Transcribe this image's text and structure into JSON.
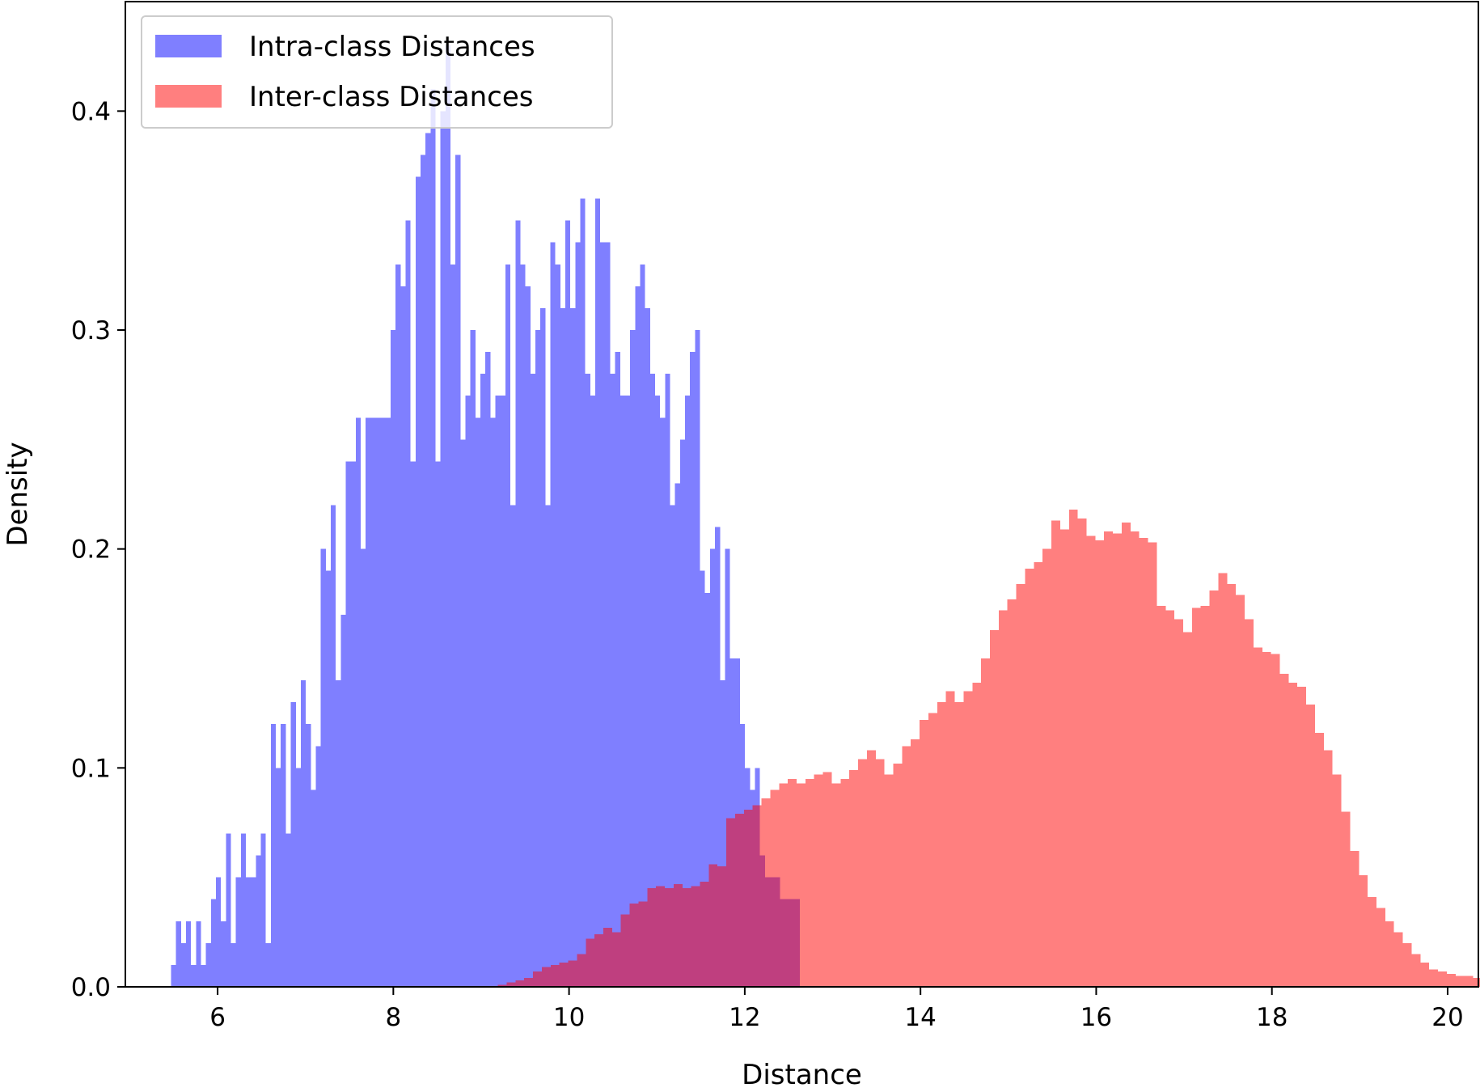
{
  "chart_data": {
    "type": "histogram",
    "title": "",
    "xlabel": "Distance",
    "ylabel": "Density",
    "xlim": [
      4.95,
      20.35
    ],
    "ylim": [
      0,
      0.45
    ],
    "xticks": [
      6,
      8,
      10,
      12,
      14,
      16,
      18,
      20
    ],
    "yticks": [
      0.0,
      0.1,
      0.2,
      0.3,
      0.4
    ],
    "ytick_labels": [
      "0.0",
      "0.1",
      "0.2",
      "0.3",
      "0.4"
    ],
    "grid": false,
    "legend_position": "top-left",
    "series": [
      {
        "name": "Intra-class Distances",
        "color": "#0000ff",
        "alpha": 0.5,
        "bin_start": 5.47,
        "bin_width": 0.0568,
        "values": [
          0.01,
          0.03,
          0.02,
          0.03,
          0.01,
          0.03,
          0.01,
          0.02,
          0.04,
          0.05,
          0.03,
          0.07,
          0.02,
          0.05,
          0.07,
          0.05,
          0.05,
          0.06,
          0.07,
          0.02,
          0.12,
          0.1,
          0.12,
          0.07,
          0.13,
          0.1,
          0.14,
          0.12,
          0.09,
          0.11,
          0.2,
          0.19,
          0.22,
          0.14,
          0.17,
          0.24,
          0.24,
          0.26,
          0.2,
          0.26,
          0.26,
          0.26,
          0.26,
          0.26,
          0.3,
          0.33,
          0.32,
          0.35,
          0.24,
          0.37,
          0.38,
          0.39,
          0.41,
          0.24,
          0.4,
          0.43,
          0.33,
          0.38,
          0.25,
          0.27,
          0.3,
          0.26,
          0.28,
          0.29,
          0.26,
          0.27,
          0.27,
          0.33,
          0.22,
          0.35,
          0.33,
          0.32,
          0.28,
          0.3,
          0.31,
          0.22,
          0.34,
          0.33,
          0.31,
          0.35,
          0.31,
          0.34,
          0.36,
          0.28,
          0.27,
          0.36,
          0.34,
          0.34,
          0.28,
          0.29,
          0.27,
          0.27,
          0.3,
          0.32,
          0.33,
          0.31,
          0.28,
          0.27,
          0.26,
          0.28,
          0.22,
          0.23,
          0.25,
          0.27,
          0.29,
          0.3,
          0.19,
          0.18,
          0.2,
          0.21,
          0.14,
          0.2,
          0.15,
          0.15,
          0.12,
          0.1,
          0.09,
          0.1,
          0.06,
          0.05,
          0.05,
          0.05,
          0.04,
          0.04,
          0.04,
          0.04
        ]
      },
      {
        "name": "Inter-class Distances",
        "color": "#ff0000",
        "alpha": 0.5,
        "bin_start": 9.19,
        "bin_width": 0.1,
        "values": [
          0.001,
          0.002,
          0.003,
          0.004,
          0.007,
          0.009,
          0.01,
          0.011,
          0.012,
          0.015,
          0.022,
          0.024,
          0.027,
          0.025,
          0.033,
          0.038,
          0.039,
          0.045,
          0.046,
          0.045,
          0.047,
          0.045,
          0.046,
          0.048,
          0.056,
          0.055,
          0.077,
          0.079,
          0.081,
          0.083,
          0.086,
          0.09,
          0.093,
          0.095,
          0.093,
          0.095,
          0.097,
          0.098,
          0.093,
          0.095,
          0.099,
          0.104,
          0.108,
          0.104,
          0.097,
          0.102,
          0.11,
          0.113,
          0.122,
          0.125,
          0.13,
          0.135,
          0.13,
          0.135,
          0.139,
          0.15,
          0.163,
          0.172,
          0.177,
          0.184,
          0.191,
          0.194,
          0.2,
          0.213,
          0.209,
          0.218,
          0.214,
          0.206,
          0.204,
          0.208,
          0.207,
          0.212,
          0.208,
          0.205,
          0.203,
          0.174,
          0.172,
          0.168,
          0.162,
          0.173,
          0.174,
          0.181,
          0.189,
          0.184,
          0.179,
          0.168,
          0.155,
          0.153,
          0.152,
          0.143,
          0.139,
          0.137,
          0.129,
          0.116,
          0.108,
          0.097,
          0.08,
          0.062,
          0.051,
          0.041,
          0.036,
          0.03,
          0.025,
          0.02,
          0.015,
          0.011,
          0.008,
          0.007,
          0.006,
          0.005,
          0.005,
          0.004,
          0.003,
          0.002,
          0.002,
          0.001
        ]
      }
    ]
  }
}
